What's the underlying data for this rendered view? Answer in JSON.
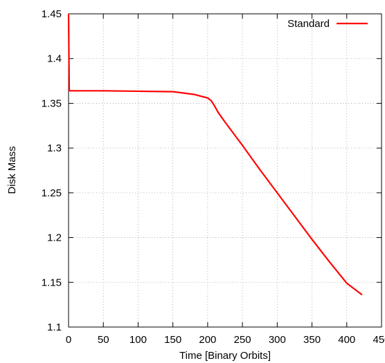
{
  "chart_data": {
    "type": "line",
    "xlabel": "Time [Binary Orbits]",
    "ylabel": "Disk Mass",
    "xlim": [
      0,
      450
    ],
    "xticks": [
      0,
      50,
      100,
      150,
      200,
      250,
      300,
      350,
      400,
      450
    ],
    "ylim": [
      1.1,
      1.45
    ],
    "yticks": [
      1.1,
      1.15,
      1.2,
      1.25,
      1.3,
      1.35,
      1.4,
      1.45
    ],
    "grid": true,
    "legend": "top-right",
    "series": [
      {
        "name": "Standard",
        "color": "#ff0000",
        "x": [
          0,
          1,
          50,
          100,
          150,
          180,
          200,
          205,
          210,
          215,
          225,
          250,
          275,
          300,
          325,
          350,
          375,
          400,
          422
        ],
        "values": [
          1.45,
          1.364,
          1.364,
          1.3635,
          1.363,
          1.36,
          1.356,
          1.353,
          1.347,
          1.34,
          1.329,
          1.303,
          1.276,
          1.25,
          1.224,
          1.198,
          1.173,
          1.149,
          1.136
        ]
      }
    ]
  }
}
